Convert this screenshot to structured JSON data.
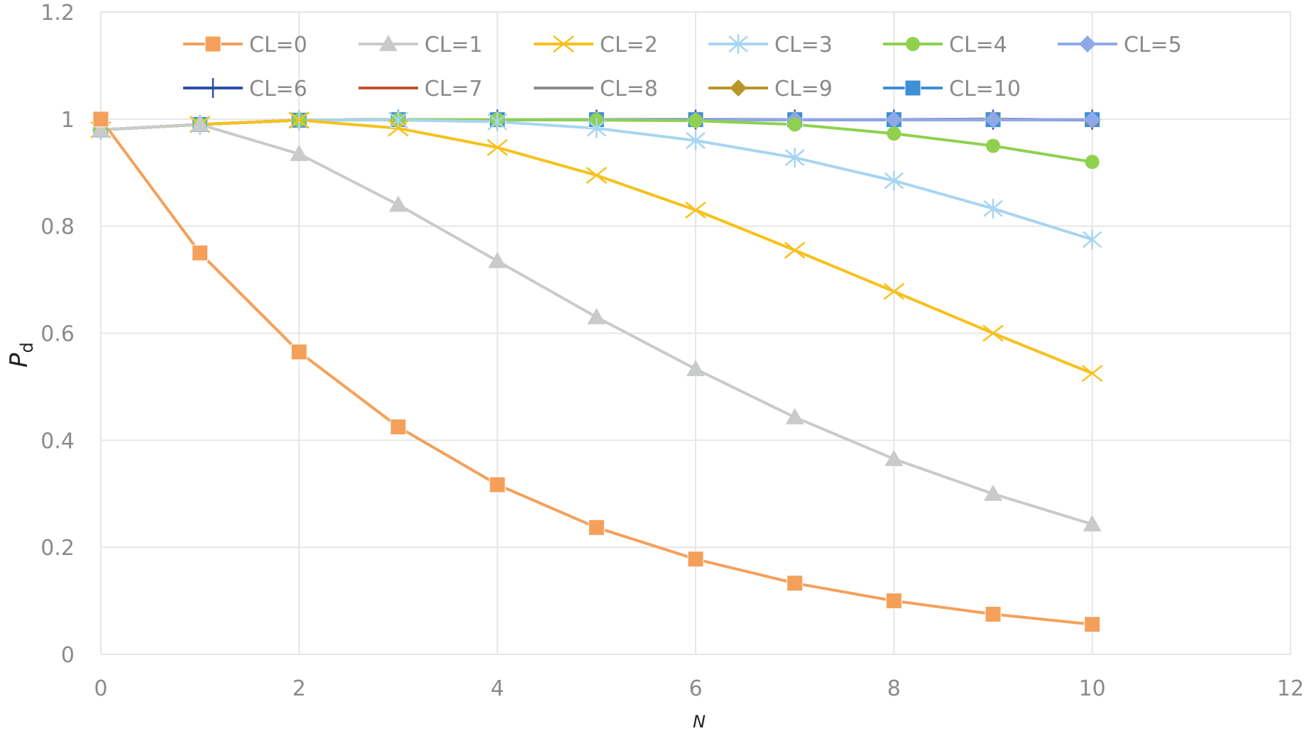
{
  "chart_data": {
    "type": "line",
    "title": "",
    "xlabel": "N",
    "ylabel_main": "P",
    "ylabel_sub": "d",
    "xlim": [
      0,
      12
    ],
    "ylim": [
      0,
      1.2
    ],
    "x_ticks": [
      "0",
      "2",
      "4",
      "6",
      "8",
      "10",
      "12"
    ],
    "y_ticks": [
      "0",
      "0.2",
      "0.4",
      "0.6",
      "0.8",
      "1",
      "1.2"
    ],
    "grid": true,
    "legend_position": "top",
    "x": [
      0,
      1,
      2,
      3,
      4,
      5,
      6,
      7,
      8,
      9,
      10
    ],
    "series": [
      {
        "name": "CL=0",
        "color": "#f4a05a",
        "marker": "square",
        "values": [
          1.0,
          0.75,
          0.565,
          0.425,
          0.317,
          0.237,
          0.178,
          0.133,
          0.1,
          0.075,
          0.056
        ]
      },
      {
        "name": "CL=1",
        "color": "#c9cbcb",
        "marker": "triangle",
        "values": [
          0.98,
          0.99,
          0.935,
          0.84,
          0.735,
          0.63,
          0.533,
          0.443,
          0.365,
          0.3,
          0.243
        ]
      },
      {
        "name": "CL=2",
        "color": "#f7c11b",
        "marker": "x",
        "values": [
          0.98,
          0.99,
          0.998,
          0.983,
          0.947,
          0.895,
          0.83,
          0.755,
          0.678,
          0.6,
          0.525
        ]
      },
      {
        "name": "CL=3",
        "color": "#a7d5f2",
        "marker": "star",
        "values": [
          0.98,
          0.99,
          0.998,
          0.998,
          0.995,
          0.983,
          0.96,
          0.928,
          0.885,
          0.833,
          0.775
        ]
      },
      {
        "name": "CL=4",
        "color": "#8fd14f",
        "marker": "circle",
        "values": [
          0.98,
          0.99,
          0.998,
          0.999,
          0.999,
          0.998,
          0.997,
          0.99,
          0.973,
          0.95,
          0.92
        ]
      },
      {
        "name": "CL=5",
        "color": "#8fa8e8",
        "marker": "diamond",
        "values": [
          0.98,
          0.99,
          0.998,
          0.999,
          0.999,
          0.999,
          0.998,
          0.999,
          0.999,
          0.999,
          0.999
        ]
      },
      {
        "name": "CL=6",
        "color": "#2c4ea6",
        "marker": "plus",
        "values": [
          0.98,
          0.99,
          0.998,
          0.999,
          0.999,
          0.999,
          0.999,
          0.999,
          0.999,
          0.999,
          0.999
        ]
      },
      {
        "name": "CL=7",
        "color": "#c0542a",
        "marker": "none",
        "values": [
          0.98,
          0.99,
          0.998,
          0.999,
          0.999,
          0.999,
          0.999,
          0.999,
          0.999,
          0.999,
          0.999
        ]
      },
      {
        "name": "CL=8",
        "color": "#8c8c8c",
        "marker": "none",
        "values": [
          0.98,
          0.99,
          0.998,
          0.999,
          0.999,
          0.999,
          0.999,
          0.999,
          0.999,
          1.0,
          0.998
        ]
      },
      {
        "name": "CL=9",
        "color": "#b8962a",
        "marker": "diamond",
        "values": [
          0.98,
          0.99,
          0.998,
          0.999,
          0.999,
          0.999,
          0.999,
          0.999,
          0.999,
          1.0,
          0.998
        ]
      },
      {
        "name": "CL=10",
        "color": "#3d8fd6",
        "marker": "square",
        "values": [
          0.98,
          0.99,
          0.998,
          0.999,
          0.999,
          0.999,
          0.999,
          0.999,
          0.999,
          0.999,
          0.999
        ]
      }
    ]
  }
}
